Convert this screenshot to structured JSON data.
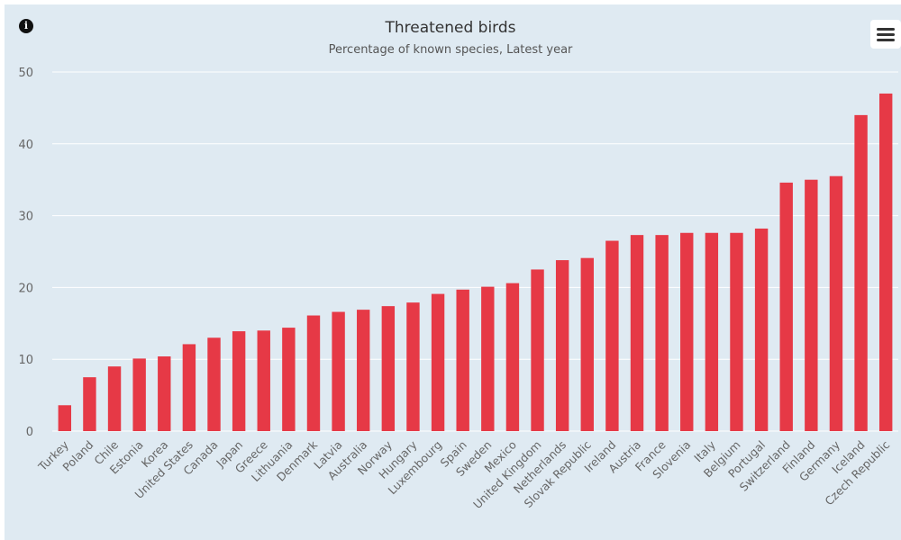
{
  "title": "Threatened birds",
  "subtitle": "Percentage of known species, Latest year",
  "icons": {
    "info": "info-circle-icon",
    "menu": "hamburger-menu-icon"
  },
  "colors": {
    "bar": "#e63946",
    "background": "#dfeaf2",
    "grid": "#ffffff"
  },
  "chart_data": {
    "type": "bar",
    "title": "Threatened birds",
    "subtitle": "Percentage of known species, Latest year",
    "xlabel": "",
    "ylabel": "",
    "ylim": [
      0,
      50
    ],
    "yticks": [
      0,
      10,
      20,
      30,
      40,
      50
    ],
    "grid": true,
    "categories": [
      "Turkey",
      "Poland",
      "Chile",
      "Estonia",
      "Korea",
      "United States",
      "Canada",
      "Japan",
      "Greece",
      "Lithuania",
      "Denmark",
      "Latvia",
      "Australia",
      "Norway",
      "Hungary",
      "Luxembourg",
      "Spain",
      "Sweden",
      "Mexico",
      "United Kingdom",
      "Netherlands",
      "Slovak Republic",
      "Ireland",
      "Austria",
      "France",
      "Slovenia",
      "Italy",
      "Belgium",
      "Portugal",
      "Switzerland",
      "Finland",
      "Germany",
      "Iceland",
      "Czech Republic"
    ],
    "values": [
      3.6,
      7.5,
      9.0,
      10.1,
      10.4,
      12.1,
      13.0,
      13.9,
      14.0,
      14.4,
      16.1,
      16.6,
      16.9,
      17.4,
      17.9,
      19.1,
      19.7,
      20.1,
      20.6,
      22.5,
      23.8,
      24.1,
      26.5,
      27.3,
      27.3,
      27.6,
      27.6,
      27.6,
      28.2,
      34.6,
      35.0,
      35.5,
      44.0,
      47.0
    ]
  }
}
